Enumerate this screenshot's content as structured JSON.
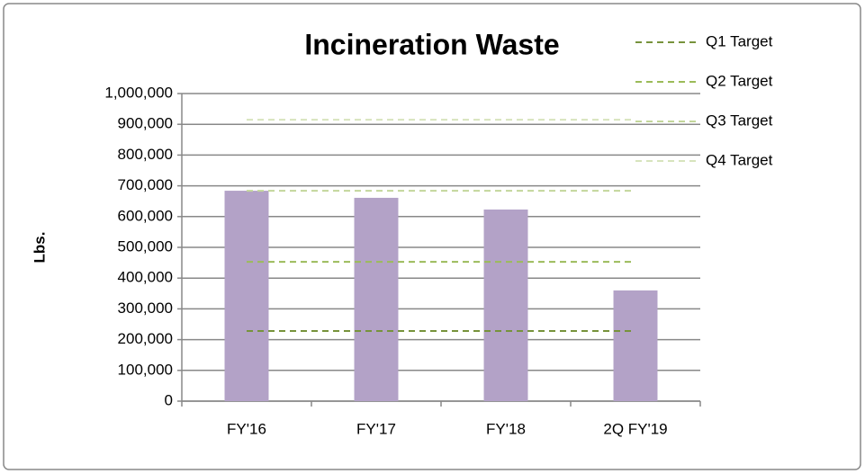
{
  "chart_data": {
    "type": "bar",
    "title": "Incineration Waste",
    "y_label": "Lbs.",
    "categories": [
      "FY'16",
      "FY'17",
      "FY'18",
      "2Q FY'19"
    ],
    "values": [
      684000,
      661000,
      623000,
      360000
    ],
    "color": "#b3a2c7",
    "series": [
      {
        "name": "Q1 Target",
        "color": "#77933c",
        "values": [
          228000,
          228000,
          228000,
          228000
        ]
      },
      {
        "name": "Q2 Target",
        "color": "#9bbb59",
        "values": [
          453000,
          453000,
          453000,
          453000
        ]
      },
      {
        "name": "Q3 Target",
        "color": "#c3d69b",
        "values": [
          684000,
          684000,
          684000,
          684000
        ]
      },
      {
        "name": "Q4 Target",
        "color": "#d7e4bd",
        "values": [
          915000,
          915000,
          915000,
          915000
        ]
      }
    ],
    "ylim": [
      0,
      1000000
    ],
    "yticks": [
      0,
      {
        "value": 100000,
        "label": "100,000"
      },
      {
        "value": 200000,
        "label": "200,000"
      },
      {
        "value": 300000,
        "label": "300,000"
      },
      {
        "value": 400000,
        "label": "400,000"
      },
      {
        "value": 500000,
        "label": "500,000"
      },
      {
        "value": 600000,
        "label": "600,000"
      },
      {
        "value": 700000,
        "label": "700,000"
      },
      {
        "value": 800000,
        "label": "800,000"
      },
      {
        "value": 900000,
        "label": "900,000"
      },
      {
        "value": 1000000,
        "label": "1,000,000"
      }
    ],
    "grid": true,
    "legend": "top-right"
  }
}
